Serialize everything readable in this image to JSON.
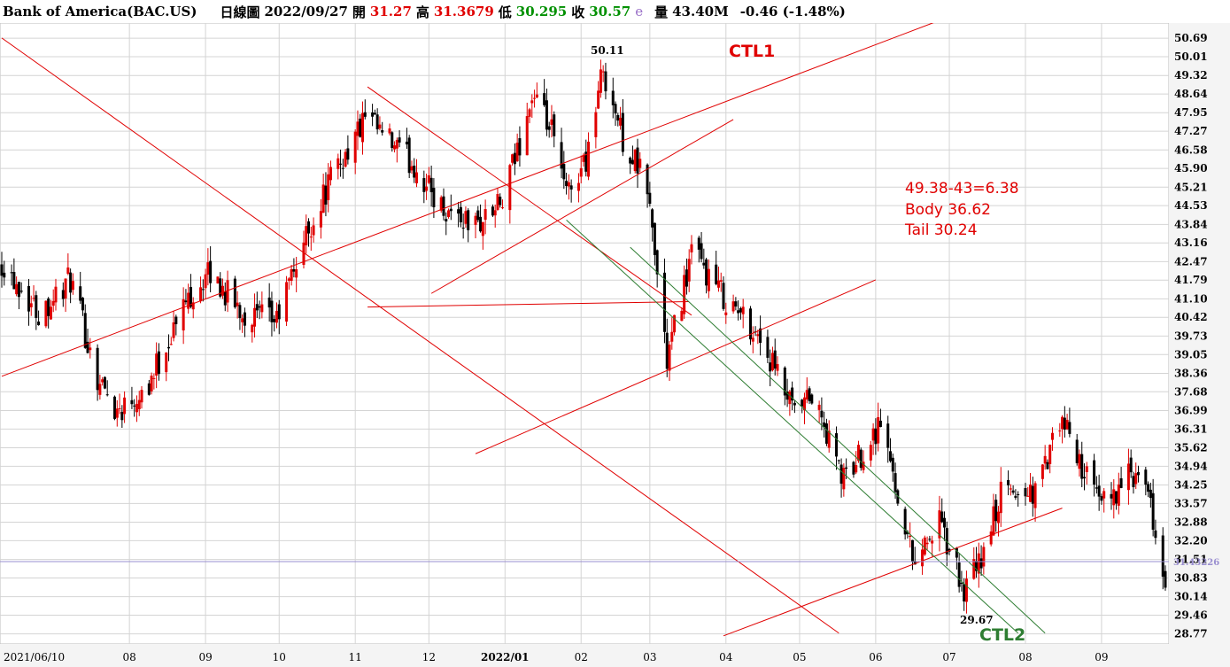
{
  "header": {
    "ticker": "Bank of America(BAC.US)",
    "period": "日線圖",
    "date": "2022/09/27",
    "open_label": "開",
    "open": "31.27",
    "high_label": "高",
    "high": "31.3679",
    "low_label": "低",
    "low": "30.295",
    "close_label": "收",
    "close": "30.57",
    "e_mark": "e",
    "volume_label": "量",
    "volume": "43.40M",
    "change": "-0.46 (-1.48%)"
  },
  "colors": {
    "up": "#e00000",
    "down": "#000000",
    "trend_red": "#e00000",
    "trend_green": "#2e7d32",
    "current_line": "#9a8fd0",
    "grid": "#d4d4d4"
  },
  "chart_data": {
    "type": "candlestick",
    "title": "Bank of America(BAC.US)",
    "y_tick_labels": [
      "50.69",
      "50.01",
      "49.32",
      "48.64",
      "47.95",
      "47.27",
      "46.58",
      "45.90",
      "45.21",
      "44.53",
      "43.84",
      "43.16",
      "42.47",
      "41.79",
      "41.10",
      "40.42",
      "39.73",
      "39.05",
      "38.36",
      "37.68",
      "36.99",
      "36.31",
      "35.62",
      "34.94",
      "34.25",
      "33.57",
      "32.88",
      "32.20",
      "31.51",
      "30.83",
      "30.14",
      "29.46",
      "28.77"
    ],
    "ylim": [
      28.4,
      51.25
    ],
    "x_range": [
      "2021/06/10",
      "2022/09/27"
    ],
    "x_tick_labels": [
      {
        "label": "2021/06/10",
        "at": "2021-06-10"
      },
      {
        "label": "08",
        "at": "2021-08-01"
      },
      {
        "label": "09",
        "at": "2021-09-01"
      },
      {
        "label": "10",
        "at": "2021-10-01"
      },
      {
        "label": "11",
        "at": "2021-11-01"
      },
      {
        "label": "12",
        "at": "2021-12-01"
      },
      {
        "label": "2022/01",
        "at": "2022-01-01"
      },
      {
        "label": "02",
        "at": "2022-02-01"
      },
      {
        "label": "03",
        "at": "2022-03-01"
      },
      {
        "label": "04",
        "at": "2022-04-01"
      },
      {
        "label": "05",
        "at": "2022-05-01"
      },
      {
        "label": "06",
        "at": "2022-06-01"
      },
      {
        "label": "07",
        "at": "2022-07-01"
      },
      {
        "label": "08",
        "at": "2022-08-01"
      },
      {
        "label": "09",
        "at": "2022-09-01"
      }
    ],
    "price_path": [
      [
        "2021-06-10",
        42.5
      ],
      [
        "2021-06-25",
        40.6
      ],
      [
        "2021-07-08",
        41.8
      ],
      [
        "2021-07-19",
        38.2
      ],
      [
        "2021-07-27",
        37.0
      ],
      [
        "2021-08-09",
        38.0
      ],
      [
        "2021-08-25",
        41.2
      ],
      [
        "2021-09-03",
        42.0
      ],
      [
        "2021-09-17",
        40.5
      ],
      [
        "2021-09-30",
        40.3
      ],
      [
        "2021-10-10",
        43.0
      ],
      [
        "2021-10-22",
        45.5
      ],
      [
        "2021-11-05",
        47.7
      ],
      [
        "2021-11-25",
        46.0
      ],
      [
        "2021-12-06",
        44.5
      ],
      [
        "2021-12-20",
        43.8
      ],
      [
        "2021-12-31",
        44.6
      ],
      [
        "2022-01-12",
        48.5
      ],
      [
        "2022-01-20",
        47.2
      ],
      [
        "2022-01-26",
        44.9
      ],
      [
        "2022-02-03",
        46.3
      ],
      [
        "2022-02-10",
        49.6
      ],
      [
        "2022-02-18",
        47.0
      ],
      [
        "2022-02-28",
        45.2
      ],
      [
        "2022-03-08",
        38.8
      ],
      [
        "2022-03-18",
        42.8
      ],
      [
        "2022-03-31",
        41.2
      ],
      [
        "2022-04-14",
        39.8
      ],
      [
        "2022-04-29",
        36.8
      ],
      [
        "2022-05-06",
        37.5
      ],
      [
        "2022-05-19",
        34.4
      ],
      [
        "2022-06-03",
        36.6
      ],
      [
        "2022-06-16",
        31.6
      ],
      [
        "2022-06-27",
        32.8
      ],
      [
        "2022-07-07",
        30.3
      ],
      [
        "2022-07-14",
        31.5
      ],
      [
        "2022-07-22",
        33.9
      ],
      [
        "2022-08-05",
        34.0
      ],
      [
        "2022-08-16",
        36.6
      ],
      [
        "2022-08-31",
        33.5
      ],
      [
        "2022-09-13",
        34.6
      ],
      [
        "2022-09-20",
        33.8
      ],
      [
        "2022-09-27",
        30.57
      ]
    ],
    "current_price": 31.43226,
    "current_price_label": "31.43226",
    "annotations": {
      "peak_label": "50.11",
      "trough_label": "29.67",
      "ctl1": "CTL1",
      "ctl2": "CTL2",
      "calc_line": "49.38-43=6.38",
      "body_line": "Body 36.62",
      "tail_line": "Tail    30.24"
    },
    "trendlines": [
      {
        "color": "red",
        "from": [
          "2021-06-10",
          38.25
        ],
        "to": [
          "2022-09-27",
          54.5
        ]
      },
      {
        "color": "red",
        "from": [
          "2021-12-02",
          41.3
        ],
        "to": [
          "2022-04-04",
          47.7
        ]
      },
      {
        "color": "red",
        "from": [
          "2021-12-20",
          35.4
        ],
        "to": [
          "2022-06-01",
          41.8
        ]
      },
      {
        "color": "red",
        "from": [
          "2022-03-31",
          28.7
        ],
        "to": [
          "2022-08-16",
          33.4
        ]
      },
      {
        "color": "red",
        "from": [
          "2021-06-10",
          50.7
        ],
        "to": [
          "2022-05-17",
          28.8
        ]
      },
      {
        "color": "red",
        "from": [
          "2021-11-06",
          40.8
        ],
        "to": [
          "2022-03-17",
          41.0
        ]
      },
      {
        "color": "red",
        "from": [
          "2021-11-06",
          48.9
        ],
        "to": [
          "2022-03-18",
          40.5
        ]
      },
      {
        "color": "green",
        "from": [
          "2022-01-26",
          44.0
        ],
        "to": [
          "2022-07-29",
          28.8
        ]
      },
      {
        "color": "green",
        "from": [
          "2022-02-21",
          43.0
        ],
        "to": [
          "2022-08-09",
          28.8
        ]
      }
    ]
  }
}
